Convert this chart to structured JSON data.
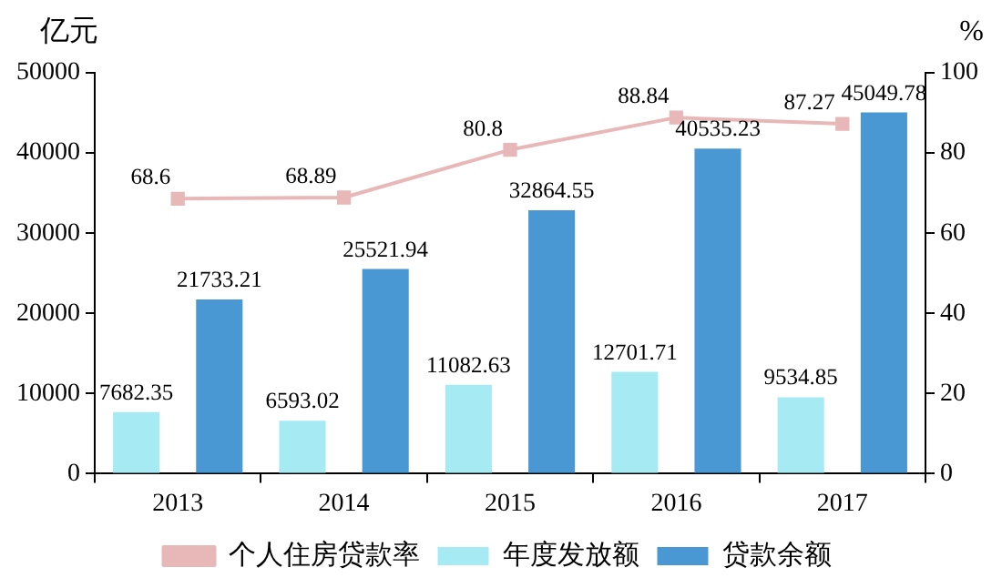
{
  "chart_data": {
    "type": "bar",
    "ylabel": "亿元",
    "y2label": "%",
    "categories": [
      "2013",
      "2014",
      "2015",
      "2016",
      "2017"
    ],
    "series": [
      {
        "name": "年度发放额",
        "color": "#a6ebf4",
        "values": [
          7682.35,
          6593.02,
          11082.63,
          12701.71,
          9534.85
        ]
      },
      {
        "name": "贷款余额",
        "color": "#4a98d3",
        "values": [
          21733.21,
          25521.94,
          32864.55,
          40535.23,
          45049.78
        ]
      },
      {
        "name": "个人住房贷款率",
        "type": "line",
        "axis": "y2",
        "color": "#e8b8b8",
        "marker": "square",
        "values": [
          68.6,
          68.89,
          80.8,
          88.84,
          87.27
        ]
      }
    ],
    "ylim": [
      0,
      50000
    ],
    "yticks": [
      0,
      10000,
      20000,
      30000,
      40000,
      50000
    ],
    "y2lim": [
      0,
      100
    ],
    "y2ticks": [
      0,
      20,
      40,
      60,
      80,
      100
    ],
    "data_labels": true,
    "grid": false,
    "legend": "bottom"
  }
}
